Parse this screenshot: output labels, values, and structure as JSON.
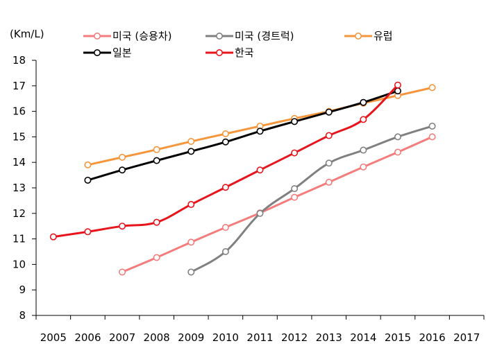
{
  "chart_data": {
    "type": "line",
    "ylabel": "(Km/L)",
    "x_categories": [
      "2005",
      "2006",
      "2007",
      "2008",
      "2009",
      "2010",
      "2011",
      "2012",
      "2013",
      "2014",
      "2015",
      "2016",
      "2017"
    ],
    "y_ticks": [
      8,
      9,
      10,
      11,
      12,
      13,
      14,
      15,
      16,
      17,
      18
    ],
    "ylim": [
      8,
      18
    ],
    "grid": false,
    "legend_position": "top",
    "series": [
      {
        "name": "미국 (승용차)",
        "color": "#f47c7c",
        "points": [
          [
            2007,
            9.7
          ],
          [
            2008,
            10.27
          ],
          [
            2009,
            10.87
          ],
          [
            2010,
            11.45
          ],
          [
            2011,
            12.02
          ],
          [
            2012,
            12.63
          ],
          [
            2013,
            13.22
          ],
          [
            2014,
            13.82
          ],
          [
            2015,
            14.4
          ],
          [
            2016,
            15.0
          ]
        ]
      },
      {
        "name": "미국 (경트럭)",
        "color": "#808080",
        "points": [
          [
            2009,
            9.7
          ],
          [
            2010,
            10.5
          ],
          [
            2011,
            12.0
          ],
          [
            2012,
            12.97
          ],
          [
            2013,
            13.97
          ],
          [
            2014,
            14.48
          ],
          [
            2015,
            15.0
          ],
          [
            2016,
            15.42
          ]
        ]
      },
      {
        "name": "유럽",
        "color": "#f5963c",
        "points": [
          [
            2006,
            13.9
          ],
          [
            2007,
            14.2
          ],
          [
            2008,
            14.5
          ],
          [
            2009,
            14.82
          ],
          [
            2010,
            15.12
          ],
          [
            2011,
            15.42
          ],
          [
            2012,
            15.72
          ],
          [
            2013,
            16.0
          ],
          [
            2014,
            16.32
          ],
          [
            2015,
            16.62
          ],
          [
            2016,
            16.93
          ]
        ]
      },
      {
        "name": "일본",
        "color": "#000000",
        "points": [
          [
            2006,
            13.3
          ],
          [
            2007,
            13.7
          ],
          [
            2008,
            14.07
          ],
          [
            2009,
            14.43
          ],
          [
            2010,
            14.8
          ],
          [
            2011,
            15.22
          ],
          [
            2012,
            15.6
          ],
          [
            2013,
            15.97
          ],
          [
            2014,
            16.35
          ],
          [
            2015,
            16.8
          ]
        ]
      },
      {
        "name": "한국",
        "color": "#e8141c",
        "points": [
          [
            2005,
            11.08
          ],
          [
            2006,
            11.28
          ],
          [
            2007,
            11.5
          ],
          [
            2008,
            11.65
          ],
          [
            2009,
            12.35
          ],
          [
            2010,
            13.02
          ],
          [
            2011,
            13.7
          ],
          [
            2012,
            14.37
          ],
          [
            2013,
            15.05
          ],
          [
            2014,
            15.68
          ],
          [
            2015,
            17.03
          ]
        ]
      }
    ]
  }
}
